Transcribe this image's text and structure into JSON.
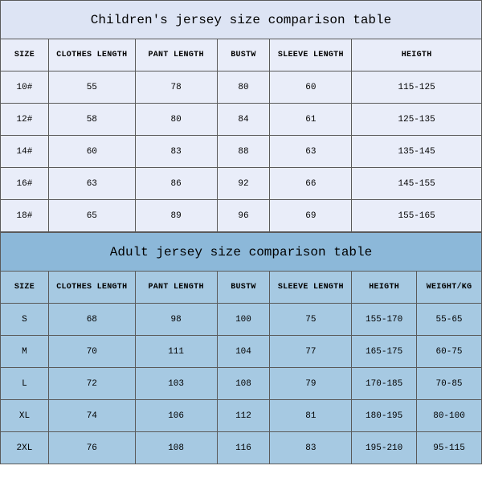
{
  "children_table": {
    "type": "table",
    "title": "Children's jersey size comparison table",
    "title_fontsize": 16,
    "header_fontsize": 10,
    "cell_fontsize": 11,
    "background_color": "#e9edf9",
    "title_background": "#dde4f4",
    "border_color": "#5a5a5a",
    "columns": [
      "SIZE",
      "CLOTHES LENGTH",
      "PANT LENGTH",
      "BUSTW",
      "SLEEVE LENGTH",
      "HEIGTH"
    ],
    "rows": [
      [
        "10#",
        "55",
        "78",
        "80",
        "60",
        "115-125"
      ],
      [
        "12#",
        "58",
        "80",
        "84",
        "61",
        "125-135"
      ],
      [
        "14#",
        "60",
        "83",
        "88",
        "63",
        "135-145"
      ],
      [
        "16#",
        "63",
        "86",
        "92",
        "66",
        "145-155"
      ],
      [
        "18#",
        "65",
        "89",
        "96",
        "69",
        "155-165"
      ]
    ]
  },
  "adult_table": {
    "type": "table",
    "title": "Adult jersey size comparison table",
    "title_fontsize": 16,
    "header_fontsize": 10,
    "cell_fontsize": 11,
    "background_color": "#a6c9e2",
    "title_background": "#8cb8d9",
    "border_color": "#5a5a5a",
    "columns": [
      "SIZE",
      "CLOTHES LENGTH",
      "PANT LENGTH",
      "BUSTW",
      "SLEEVE LENGTH",
      "HEIGTH",
      "WEIGHT/KG"
    ],
    "rows": [
      [
        "S",
        "68",
        "98",
        "100",
        "75",
        "155-170",
        "55-65"
      ],
      [
        "M",
        "70",
        "111",
        "104",
        "77",
        "165-175",
        "60-75"
      ],
      [
        "L",
        "72",
        "103",
        "108",
        "79",
        "170-185",
        "70-85"
      ],
      [
        "XL",
        "74",
        "106",
        "112",
        "81",
        "180-195",
        "80-100"
      ],
      [
        "2XL",
        "76",
        "108",
        "116",
        "83",
        "195-210",
        "95-115"
      ]
    ]
  }
}
